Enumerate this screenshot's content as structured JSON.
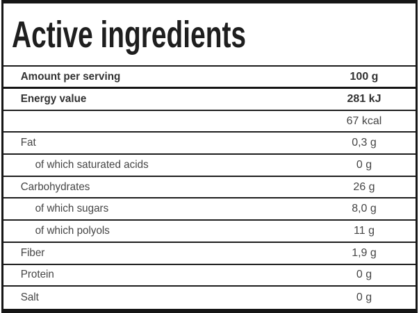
{
  "colors": {
    "border": "#161616",
    "separator": "#1d1d1d",
    "title_text": "#1e1e1e",
    "bold_text": "#323232",
    "row_text": "#454545",
    "background": "#ffffff"
  },
  "title": "Active ingredients",
  "table": {
    "header": {
      "label": "Amount per serving",
      "value": "100 g"
    },
    "rows": [
      {
        "label": "Energy value",
        "value": "281 kJ",
        "bold": true,
        "indent": false
      },
      {
        "label": "",
        "value": "67 kcal",
        "bold": false,
        "indent": false
      },
      {
        "label": "Fat",
        "value": "0,3 g",
        "bold": false,
        "indent": false
      },
      {
        "label": "of which saturated acids",
        "value": "0 g",
        "bold": false,
        "indent": true
      },
      {
        "label": "Carbohydrates",
        "value": "26 g",
        "bold": false,
        "indent": false
      },
      {
        "label": "of which sugars",
        "value": "8,0 g",
        "bold": false,
        "indent": true
      },
      {
        "label": "of which polyols",
        "value": "11 g",
        "bold": false,
        "indent": true
      },
      {
        "label": "Fiber",
        "value": "1,9 g",
        "bold": false,
        "indent": false
      },
      {
        "label": "Protein",
        "value": "0 g",
        "bold": false,
        "indent": false
      },
      {
        "label": "Salt",
        "value": "0 g",
        "bold": false,
        "indent": false
      }
    ]
  }
}
